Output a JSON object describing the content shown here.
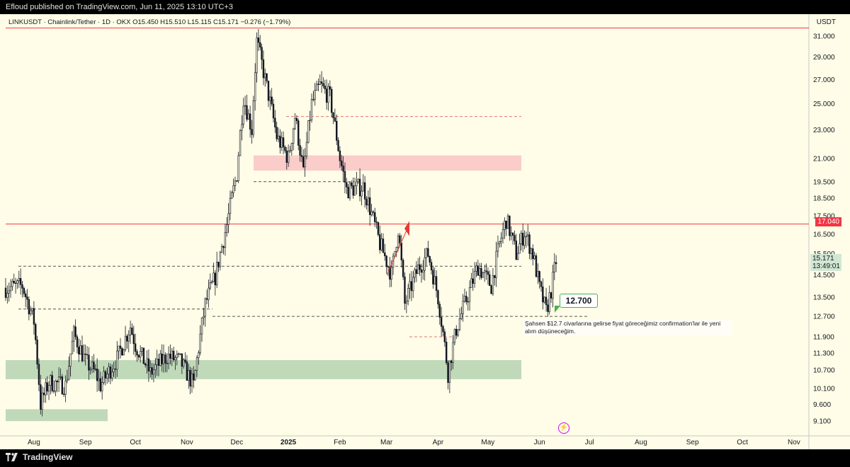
{
  "header": {
    "publisher_line": "Efloud published on TradingView.com, Jun 11, 2025 13:10 UTC+3"
  },
  "symbol_bar": {
    "text": "LINKUSDT · Chainlink/Tether · 1D · OKX   O15.450   H15.510   L15.115   C15.171   −0.276 (−1.79%)"
  },
  "currency": "USDT",
  "footer": {
    "logo_text": "TradingView"
  },
  "price_axis": [
    "31.000",
    "29.000",
    "27.000",
    "25.000",
    "23.000",
    "21.000",
    "19.500",
    "18.500",
    "17.500",
    "16.500",
    "15.500",
    "14.500",
    "13.500",
    "12.700",
    "11.900",
    "11.300",
    "10.700",
    "10.100",
    "9.600",
    "9.100"
  ],
  "time_axis": [
    {
      "label": "Aug",
      "bold": false
    },
    {
      "label": "Sep",
      "bold": false
    },
    {
      "label": "Oct",
      "bold": false
    },
    {
      "label": "Nov",
      "bold": false
    },
    {
      "label": "Dec",
      "bold": false
    },
    {
      "label": "2025",
      "bold": true
    },
    {
      "label": "Feb",
      "bold": false
    },
    {
      "label": "Mar",
      "bold": false
    },
    {
      "label": "Apr",
      "bold": false
    },
    {
      "label": "May",
      "bold": false
    },
    {
      "label": "Jun",
      "bold": false
    },
    {
      "label": "Jul",
      "bold": false
    },
    {
      "label": "Aug",
      "bold": false
    },
    {
      "label": "Sep",
      "bold": false
    },
    {
      "label": "Oct",
      "bold": false
    },
    {
      "label": "Nov",
      "bold": false
    }
  ],
  "price_tags": {
    "resistance": "17.040",
    "current_price": "15.171",
    "countdown": "13:49:01"
  },
  "annotations": {
    "callout_value": "12.700",
    "note": "Şahsen $12.7 civarlarına gelirse fiyat göreceğimiz confirmation'lar ile yeni alım düşüneceğim."
  },
  "colors": {
    "background": "#fffde7",
    "candle": "#131722",
    "resistance_line": "#f23645",
    "supply_zone": "#f8bbc0",
    "demand_zone": "#a5c9a5",
    "callout_border": "#4caf50"
  },
  "chart_data": {
    "type": "candlestick",
    "symbol": "LINKUSDT",
    "timeframe": "1D",
    "exchange": "OKX",
    "ohlc_last": {
      "open": 15.45,
      "high": 15.51,
      "low": 15.115,
      "close": 15.171,
      "change": -0.276,
      "change_pct": -1.79
    },
    "close_path": [
      {
        "date": "2024-07-15",
        "close": 13.9
      },
      {
        "date": "2024-07-25",
        "close": 14.0
      },
      {
        "date": "2024-08-01",
        "close": 12.5
      },
      {
        "date": "2024-08-05",
        "close": 9.6
      },
      {
        "date": "2024-08-10",
        "close": 10.3
      },
      {
        "date": "2024-08-20",
        "close": 10.2
      },
      {
        "date": "2024-08-25",
        "close": 12.0
      },
      {
        "date": "2024-09-01",
        "close": 11.0
      },
      {
        "date": "2024-09-07",
        "close": 10.6
      },
      {
        "date": "2024-09-10",
        "close": 10.2
      },
      {
        "date": "2024-09-20",
        "close": 11.1
      },
      {
        "date": "2024-09-28",
        "close": 12.3
      },
      {
        "date": "2024-10-01",
        "close": 11.6
      },
      {
        "date": "2024-10-10",
        "close": 10.6
      },
      {
        "date": "2024-10-20",
        "close": 11.2
      },
      {
        "date": "2024-10-28",
        "close": 11.0
      },
      {
        "date": "2024-11-05",
        "close": 10.2
      },
      {
        "date": "2024-11-12",
        "close": 13.2
      },
      {
        "date": "2024-11-18",
        "close": 14.4
      },
      {
        "date": "2024-11-25",
        "close": 17.0
      },
      {
        "date": "2024-12-01",
        "close": 20.0
      },
      {
        "date": "2024-12-05",
        "close": 25.5
      },
      {
        "date": "2024-12-10",
        "close": 23.0
      },
      {
        "date": "2024-12-13",
        "close": 30.5
      },
      {
        "date": "2024-12-18",
        "close": 27.0
      },
      {
        "date": "2024-12-25",
        "close": 22.5
      },
      {
        "date": "2025-01-01",
        "close": 21.0
      },
      {
        "date": "2025-01-05",
        "close": 24.0
      },
      {
        "date": "2025-01-10",
        "close": 20.0
      },
      {
        "date": "2025-01-15",
        "close": 25.0
      },
      {
        "date": "2025-01-20",
        "close": 26.5
      },
      {
        "date": "2025-01-26",
        "close": 25.5
      },
      {
        "date": "2025-02-01",
        "close": 21.0
      },
      {
        "date": "2025-02-05",
        "close": 19.0
      },
      {
        "date": "2025-02-15",
        "close": 19.2
      },
      {
        "date": "2025-02-25",
        "close": 16.0
      },
      {
        "date": "2025-03-04",
        "close": 14.5
      },
      {
        "date": "2025-03-08",
        "close": 16.8
      },
      {
        "date": "2025-03-12",
        "close": 13.2
      },
      {
        "date": "2025-03-20",
        "close": 14.8
      },
      {
        "date": "2025-03-26",
        "close": 15.5
      },
      {
        "date": "2025-04-01",
        "close": 13.5
      },
      {
        "date": "2025-04-07",
        "close": 10.6
      },
      {
        "date": "2025-04-12",
        "close": 12.2
      },
      {
        "date": "2025-04-20",
        "close": 13.8
      },
      {
        "date": "2025-04-25",
        "close": 14.9
      },
      {
        "date": "2025-05-03",
        "close": 14.0
      },
      {
        "date": "2025-05-08",
        "close": 16.0
      },
      {
        "date": "2025-05-12",
        "close": 17.3
      },
      {
        "date": "2025-05-18",
        "close": 15.5
      },
      {
        "date": "2025-05-23",
        "close": 16.6
      },
      {
        "date": "2025-05-28",
        "close": 15.5
      },
      {
        "date": "2025-06-01",
        "close": 13.9
      },
      {
        "date": "2025-06-05",
        "close": 12.9
      },
      {
        "date": "2025-06-08",
        "close": 13.8
      },
      {
        "date": "2025-06-11",
        "close": 15.17
      }
    ],
    "levels": [
      {
        "name": "resistance",
        "price": 17.04,
        "style": "solid"
      },
      {
        "name": "top-line",
        "price": 31.8,
        "style": "solid"
      },
      {
        "price": 24.0,
        "style": "dashed"
      },
      {
        "price": 19.5,
        "style": "dashed"
      },
      {
        "price": 14.9,
        "style": "dashed"
      },
      {
        "price": 13.0,
        "style": "dashed"
      },
      {
        "price": 12.7,
        "style": "dashed"
      },
      {
        "price": 11.9,
        "style": "dashed"
      }
    ],
    "zones": [
      {
        "name": "supply",
        "from": 20.2,
        "to": 21.2
      },
      {
        "name": "demand",
        "from": 10.4,
        "to": 11.05
      },
      {
        "name": "demand-low",
        "from": 9.1,
        "to": 9.45
      }
    ],
    "y_range": [
      8.8,
      32.5
    ],
    "x_range": [
      "2024-07-15",
      "2025-11-10"
    ],
    "y_scale": "log",
    "grid": false,
    "legend": "none"
  }
}
